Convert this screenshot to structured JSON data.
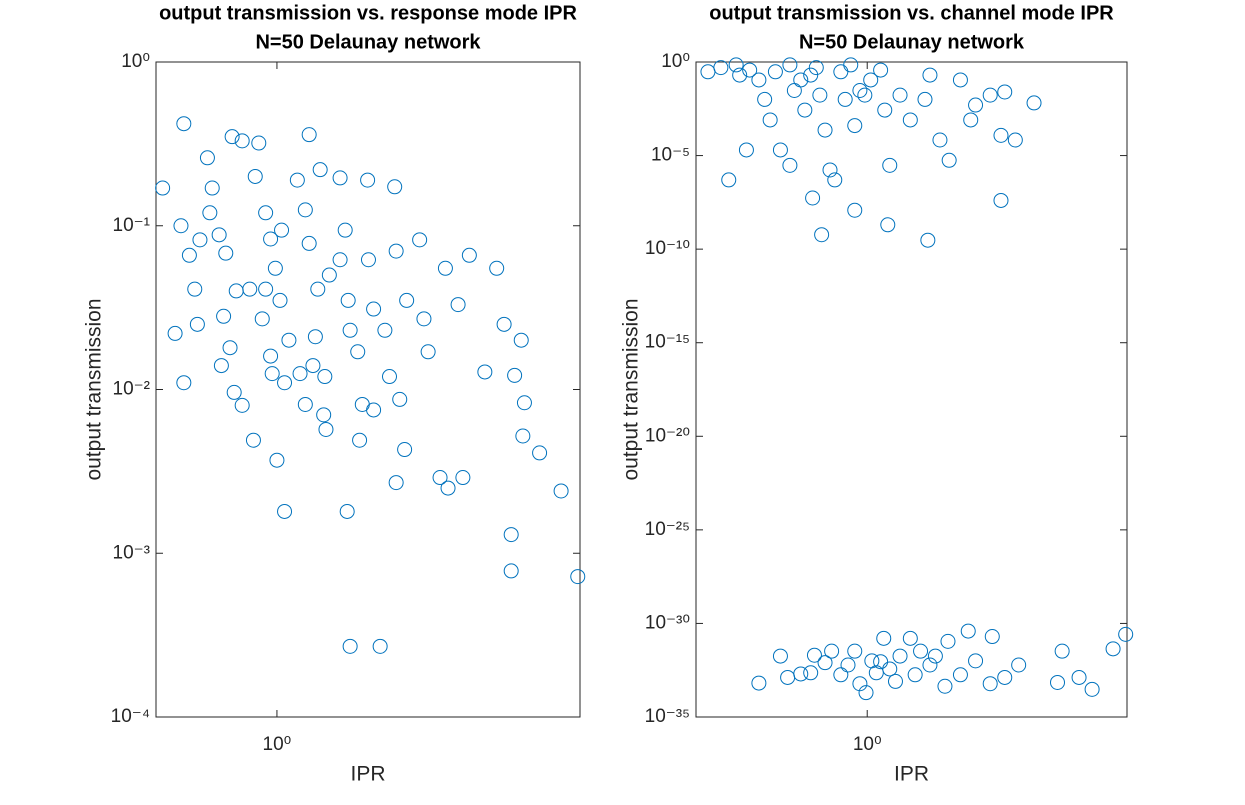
{
  "chart_data": [
    {
      "type": "scatter",
      "title": "output transmission vs. response mode IPR",
      "subtitle": "N=50 Delaunay network",
      "xlabel": "IPR",
      "ylabel": "output transmission",
      "xscale": "log",
      "yscale": "log",
      "color": "#0072bd",
      "xlim": [
        0.46,
        7
      ],
      "ylim": [
        0.0001,
        1
      ],
      "xticks": [
        {
          "value": 1,
          "label": "10⁰"
        }
      ],
      "yticks": [
        {
          "value": 0.0001,
          "label": "10⁻⁴"
        },
        {
          "value": 0.001,
          "label": "10⁻³"
        },
        {
          "value": 0.01,
          "label": "10⁻²"
        },
        {
          "value": 0.1,
          "label": "10⁻¹"
        },
        {
          "value": 1,
          "label": "10⁰"
        }
      ],
      "x": [
        0.48,
        0.55,
        0.54,
        0.57,
        0.52,
        0.55,
        0.59,
        0.64,
        0.66,
        0.69,
        0.72,
        0.75,
        0.77,
        0.71,
        0.7,
        0.74,
        0.76,
        0.8,
        0.86,
        0.8,
        0.89,
        0.87,
        0.93,
        0.96,
        1.03,
        0.99,
        0.93,
        0.91,
        0.96,
        0.97,
        1.05,
        1,
        1.05,
        1.14,
        1.2,
        1.23,
        1.23,
        1.32,
        1.3,
        1.28,
        1.26,
        1.36,
        1.2,
        1.4,
        1.5,
        1.35,
        1.37,
        1.5,
        1.55,
        1.58,
        1.6,
        1.57,
        1.6,
        1.68,
        1.7,
        1.73,
        1.79,
        1.8,
        1.86,
        1.86,
        1.94,
        2,
        2.06,
        2.13,
        2.15,
        2.2,
        2.27,
        2.3,
        2.15,
        2.5,
        2.57,
        2.64,
        2.85,
        2.95,
        3,
        3.2,
        3.3,
        3.44,
        3.8,
        4.1,
        4.3,
        4.5,
        4.5,
        4.6,
        4.8,
        4.85,
        4.9,
        5.4,
        6.2,
        6.9,
        0.61,
        0.65,
        0.6,
        0.84,
        1.08,
        1.16,
        1.02
      ],
      "values": [
        0.17,
        0.42,
        0.1,
        0.066,
        0.022,
        0.011,
        0.041,
        0.26,
        0.17,
        0.088,
        0.068,
        0.35,
        0.04,
        0.028,
        0.014,
        0.018,
        0.0096,
        0.008,
        0.0049,
        0.33,
        0.32,
        0.2,
        0.12,
        0.083,
        0.094,
        0.055,
        0.041,
        0.027,
        0.016,
        0.0125,
        0.011,
        0.0037,
        0.0018,
        0.19,
        0.125,
        0.078,
        0.36,
        0.22,
        0.041,
        0.021,
        0.014,
        0.012,
        0.0081,
        0.05,
        0.062,
        0.007,
        0.0057,
        0.196,
        0.094,
        0.035,
        0.023,
        0.0018,
        0.00027,
        0.017,
        0.0049,
        0.0081,
        0.19,
        0.062,
        0.031,
        0.0075,
        0.00027,
        0.023,
        0.012,
        0.173,
        0.07,
        0.0087,
        0.0043,
        0.035,
        0.0027,
        0.082,
        0.027,
        0.017,
        0.0029,
        0.055,
        0.0025,
        0.033,
        0.0029,
        0.066,
        0.0128,
        0.055,
        0.025,
        0.0013,
        0.00078,
        0.0122,
        0.02,
        0.0052,
        0.0083,
        0.0041,
        0.0024,
        0.00072,
        0.082,
        0.12,
        0.025,
        0.041,
        0.02,
        0.0125,
        0.035
      ]
    },
    {
      "type": "scatter",
      "title": "output transmission vs. channel mode IPR",
      "subtitle": "N=50 Delaunay network",
      "xlabel": "IPR",
      "ylabel": "output transmission",
      "xscale": "log",
      "yscale": "log",
      "color": "#0072bd",
      "xlim": [
        0.235,
        9
      ],
      "ylim": [
        1e-35,
        1
      ],
      "xticks": [
        {
          "value": 1,
          "label": "10⁰"
        }
      ],
      "yticks": [
        {
          "value": 1e-35,
          "label": "10⁻³⁵"
        },
        {
          "value": 1e-30,
          "label": "10⁻³⁰"
        },
        {
          "value": 1e-25,
          "label": "10⁻²⁵"
        },
        {
          "value": 1e-20,
          "label": "10⁻²⁰"
        },
        {
          "value": 1e-15,
          "label": "10⁻¹⁵"
        },
        {
          "value": 1e-10,
          "label": "10⁻¹⁰"
        },
        {
          "value": 1e-05,
          "label": "10⁻⁵"
        },
        {
          "value": 1,
          "label": "10⁰"
        }
      ],
      "x": [
        0.26,
        0.29,
        0.33,
        0.37,
        0.4,
        0.42,
        0.44,
        0.48,
        0.52,
        0.54,
        0.59,
        0.62,
        0.67,
        0.7,
        0.73,
        0.76,
        0.8,
        0.83,
        0.87,
        0.9,
        0.94,
        1.03,
        1.12,
        1.16,
        1.21,
        1.32,
        1.44,
        1.63,
        1.7,
        1.85,
        2.0,
        2.2,
        2.4,
        2.5,
        2.83,
        3.1,
        3.2,
        3.5,
        4.1,
        0.63,
        0.68,
        0.52,
        0.9,
        1.19,
        1.67,
        3.1,
        0.31,
        0.36,
        0.34,
        0.46,
        0.57,
        0.65,
        0.98,
        0.48,
        0.51,
        0.62,
        0.64,
        0.7,
        0.74,
        0.8,
        0.85,
        0.9,
        0.94,
        0.99,
        1.04,
        1.08,
        1.12,
        1.15,
        1.21,
        1.27,
        1.32,
        1.44,
        1.5,
        1.57,
        1.7,
        1.78,
        1.93,
        1.98,
        2.2,
        2.35,
        2.5,
        2.83,
        2.88,
        3.2,
        3.6,
        5.0,
        5.2,
        6.0,
        6.7,
        8.0,
        8.9,
        0.4,
        0.57
      ],
      "values": [
        0.3,
        0.5,
        0.7,
        0.37,
        0.11,
        0.01,
        0.0008,
        2e-05,
        0.7,
        0.03,
        0.0027,
        0.2,
        0.017,
        0.00023,
        1.7e-06,
        5e-07,
        0.3,
        0.01,
        0.7,
        0.0004,
        0.03,
        0.11,
        0.37,
        0.0027,
        3e-06,
        0.017,
        0.0008,
        0.01,
        0.2,
        6.8e-05,
        5.6e-06,
        0.11,
        0.0008,
        0.005,
        0.017,
        0.00012,
        0.025,
        6.8e-05,
        0.0065,
        5.4e-08,
        5.9e-10,
        3e-06,
        1.2e-08,
        2e-09,
        3e-10,
        4e-08,
        5e-07,
        2e-05,
        0.2,
        0.3,
        0.11,
        0.5,
        0.017,
        1.8e-32,
        1.3e-33,
        2.3e-33,
        2e-32,
        8e-33,
        3.3e-32,
        1.8e-33,
        6e-33,
        3.3e-32,
        6e-34,
        2e-34,
        1e-32,
        2.3e-33,
        9e-33,
        1.6e-31,
        3.7e-33,
        8e-34,
        1.8e-32,
        1.6e-31,
        1.8e-33,
        3.3e-32,
        6e-33,
        1.8e-32,
        4.4e-34,
        1.1e-31,
        1.8e-33,
        3.9e-31,
        1e-32,
        6e-34,
        2e-31,
        1.3e-33,
        6e-33,
        7e-34,
        3.3e-32,
        1.3e-33,
        3e-34,
        4.4e-32,
        2.6e-31,
        6.5e-34,
        2e-33
      ]
    }
  ]
}
